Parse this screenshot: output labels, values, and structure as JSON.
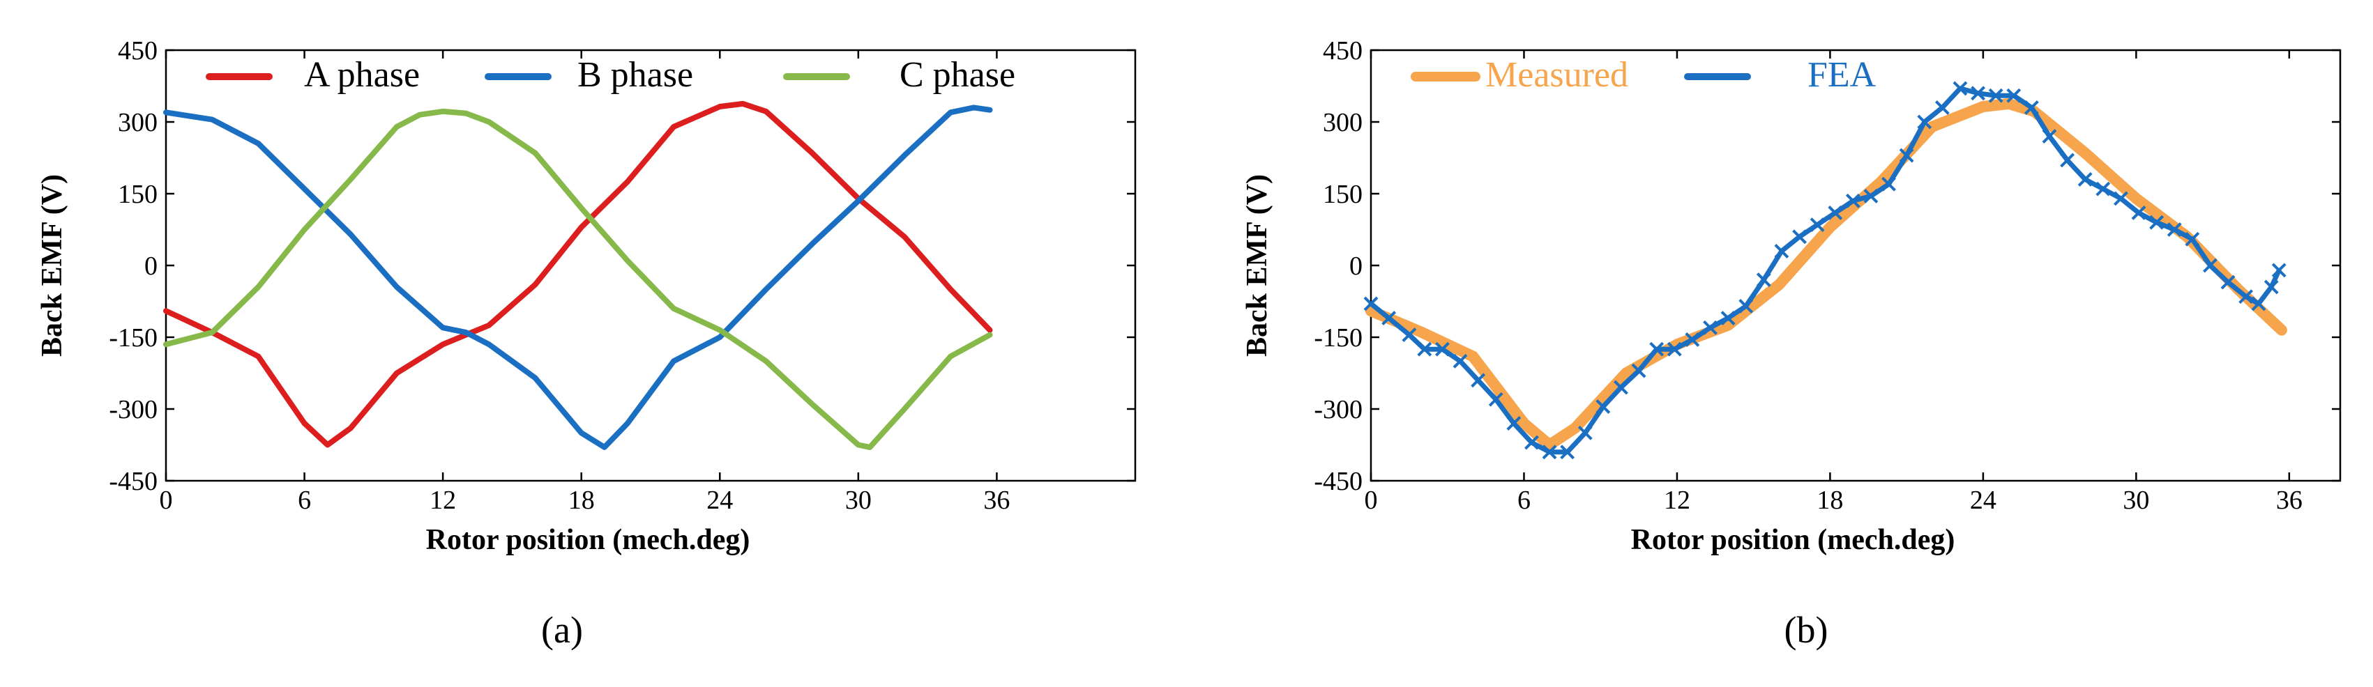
{
  "chart_data": [
    {
      "type": "line",
      "panel_label": "(a)",
      "xlabel": "Rotor position (mech.deg)",
      "ylabel": "Back EMF (V)",
      "xlim": [
        0,
        42
      ],
      "ylim": [
        -450,
        450
      ],
      "x_ticks": [
        0,
        6,
        12,
        18,
        24,
        30,
        36
      ],
      "y_ticks": [
        450,
        300,
        150,
        0,
        -150,
        -300,
        -450
      ],
      "x_tick_labels": [
        "0",
        "6",
        "12",
        "18",
        "24",
        "30",
        "36"
      ],
      "y_tick_labels": [
        "450",
        "300",
        "150",
        "0",
        "-150",
        "-300",
        "-450"
      ],
      "legend_position": "top",
      "series": [
        {
          "name": "A phase",
          "color": "#dd1e1e",
          "x": [
            0,
            2,
            4,
            6,
            7,
            8,
            10,
            12,
            14,
            16,
            18,
            20,
            22,
            24,
            25,
            26,
            28,
            30,
            32,
            34,
            35.7
          ],
          "values": [
            -95,
            -140,
            -190,
            -330,
            -375,
            -340,
            -225,
            -165,
            -125,
            -40,
            80,
            175,
            290,
            332,
            338,
            322,
            235,
            140,
            60,
            -50,
            -135
          ]
        },
        {
          "name": "B phase",
          "color": "#1b6fc2",
          "x": [
            0,
            2,
            4,
            6,
            8,
            10,
            12,
            13,
            14,
            16,
            18,
            19,
            20,
            22,
            24,
            26,
            28,
            30,
            32,
            34,
            35,
            35.7
          ],
          "values": [
            320,
            305,
            255,
            160,
            65,
            -45,
            -130,
            -140,
            -165,
            -235,
            -350,
            -380,
            -330,
            -200,
            -150,
            -50,
            45,
            135,
            230,
            320,
            330,
            325
          ]
        },
        {
          "name": "C phase",
          "color": "#86b84a",
          "x": [
            0,
            2,
            4,
            6,
            8,
            10,
            11,
            12,
            13,
            14,
            16,
            18,
            20,
            22,
            24,
            26,
            28,
            30,
            30.5,
            32,
            34,
            35.7
          ],
          "values": [
            -165,
            -140,
            -45,
            75,
            180,
            290,
            315,
            322,
            318,
            300,
            235,
            120,
            10,
            -90,
            -135,
            -200,
            -290,
            -375,
            -380,
            -300,
            -190,
            -145
          ]
        }
      ]
    },
    {
      "type": "line",
      "panel_label": "(b)",
      "xlabel": "Rotor position (mech.deg)",
      "ylabel": "Back EMF (V)",
      "xlim": [
        0,
        38
      ],
      "ylim": [
        -450,
        450
      ],
      "x_ticks": [
        0,
        6,
        12,
        18,
        24,
        30,
        36
      ],
      "y_ticks": [
        450,
        300,
        150,
        0,
        -150,
        -300,
        -450
      ],
      "x_tick_labels": [
        "0",
        "6",
        "12",
        "18",
        "24",
        "30",
        "36"
      ],
      "y_tick_labels": [
        "450",
        "300",
        "150",
        "0",
        "-150",
        "-300",
        "-450"
      ],
      "legend_position": "top",
      "series": [
        {
          "name": "Measured",
          "color": "#f7a54c",
          "marker": "none",
          "x": [
            0,
            2,
            4,
            6,
            7,
            8,
            10,
            12,
            14,
            16,
            18,
            20,
            22,
            24,
            25,
            26,
            28,
            30,
            32,
            34,
            35.7
          ],
          "values": [
            -95,
            -140,
            -190,
            -330,
            -375,
            -340,
            -225,
            -165,
            -125,
            -40,
            80,
            175,
            290,
            332,
            338,
            322,
            235,
            140,
            60,
            -50,
            -135
          ]
        },
        {
          "name": "FEA",
          "color": "#1b6fc2",
          "marker": "x",
          "x": [
            0,
            0.7,
            1.5,
            2.1,
            2.8,
            3.5,
            4.2,
            4.9,
            5.6,
            6.3,
            7.0,
            7.7,
            8.4,
            9.1,
            9.8,
            10.5,
            11.2,
            11.9,
            12.6,
            13.3,
            14.0,
            14.7,
            15.4,
            16.1,
            16.8,
            17.5,
            18.2,
            18.9,
            19.6,
            20.3,
            21.0,
            21.7,
            22.4,
            23.1,
            23.8,
            24.5,
            25.2,
            25.9,
            26.6,
            27.3,
            28.0,
            28.7,
            29.4,
            30.1,
            30.8,
            31.5,
            32.2,
            32.9,
            33.6,
            34.3,
            34.8,
            35.3,
            35.6
          ],
          "values": [
            -80,
            -110,
            -145,
            -175,
            -175,
            -200,
            -240,
            -280,
            -330,
            -370,
            -390,
            -390,
            -350,
            -295,
            -255,
            -220,
            -175,
            -175,
            -155,
            -130,
            -110,
            -85,
            -30,
            30,
            60,
            85,
            110,
            135,
            145,
            170,
            230,
            300,
            330,
            370,
            360,
            355,
            355,
            330,
            270,
            220,
            180,
            160,
            140,
            110,
            90,
            75,
            55,
            0,
            -35,
            -65,
            -80,
            -45,
            -10
          ]
        }
      ]
    }
  ]
}
